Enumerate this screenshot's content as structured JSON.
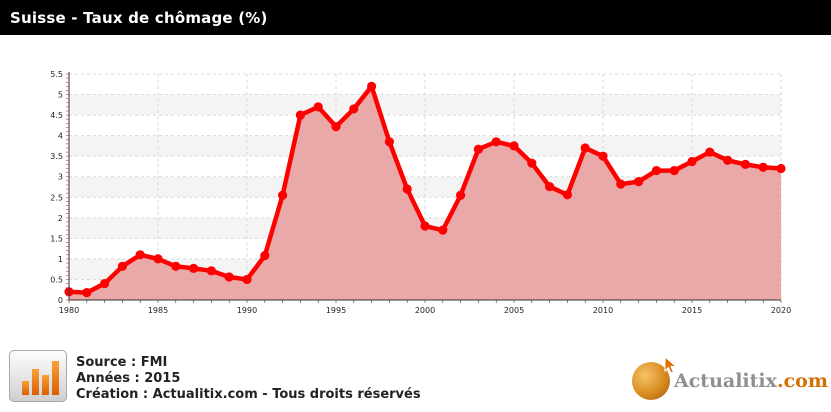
{
  "header": {
    "title": "Suisse - Taux de chômage (%)"
  },
  "footer": {
    "source": "Source : FMI",
    "years": "Années : 2015",
    "creation": "Création : Actualitix.com - Tous droits réservés"
  },
  "brand": {
    "name": "Actualitix",
    "suffix": ".com"
  },
  "icons": {
    "chart_icon": "bar-chart-icon",
    "brand_logo": "globe-icon"
  },
  "colors": {
    "line": "#ff0000",
    "area": "#e8a4a4",
    "header_bg": "#000000"
  },
  "chart_data": {
    "type": "area",
    "title": "Suisse - Taux de chômage (%)",
    "xlabel": "",
    "ylabel": "",
    "xlim": [
      1980,
      2020
    ],
    "ylim": [
      0,
      5.5
    ],
    "grid": true,
    "x_ticks": [
      1980,
      1985,
      1990,
      1995,
      2000,
      2005,
      2010,
      2015,
      2020
    ],
    "y_ticks": [
      "0",
      "0.5",
      "1",
      "1.5",
      "2",
      "2.5",
      "3",
      "3.5",
      "4",
      "4.5",
      "5",
      "5.5"
    ],
    "x": [
      1980,
      1981,
      1982,
      1983,
      1984,
      1985,
      1986,
      1987,
      1988,
      1989,
      1990,
      1991,
      1992,
      1993,
      1994,
      1995,
      1996,
      1997,
      1998,
      1999,
      2000,
      2001,
      2002,
      2003,
      2004,
      2005,
      2006,
      2007,
      2008,
      2009,
      2010,
      2011,
      2012,
      2013,
      2014,
      2015,
      2016,
      2017,
      2018,
      2019,
      2020
    ],
    "values": [
      0.2,
      0.18,
      0.4,
      0.82,
      1.1,
      1.0,
      0.82,
      0.77,
      0.71,
      0.56,
      0.5,
      1.08,
      2.55,
      4.5,
      4.7,
      4.22,
      4.65,
      5.2,
      3.85,
      2.7,
      1.8,
      1.7,
      2.55,
      3.67,
      3.85,
      3.75,
      3.33,
      2.76,
      2.56,
      3.7,
      3.5,
      2.82,
      2.88,
      3.15,
      3.15,
      3.37,
      3.6,
      3.4,
      3.3,
      3.23,
      3.2
    ]
  }
}
